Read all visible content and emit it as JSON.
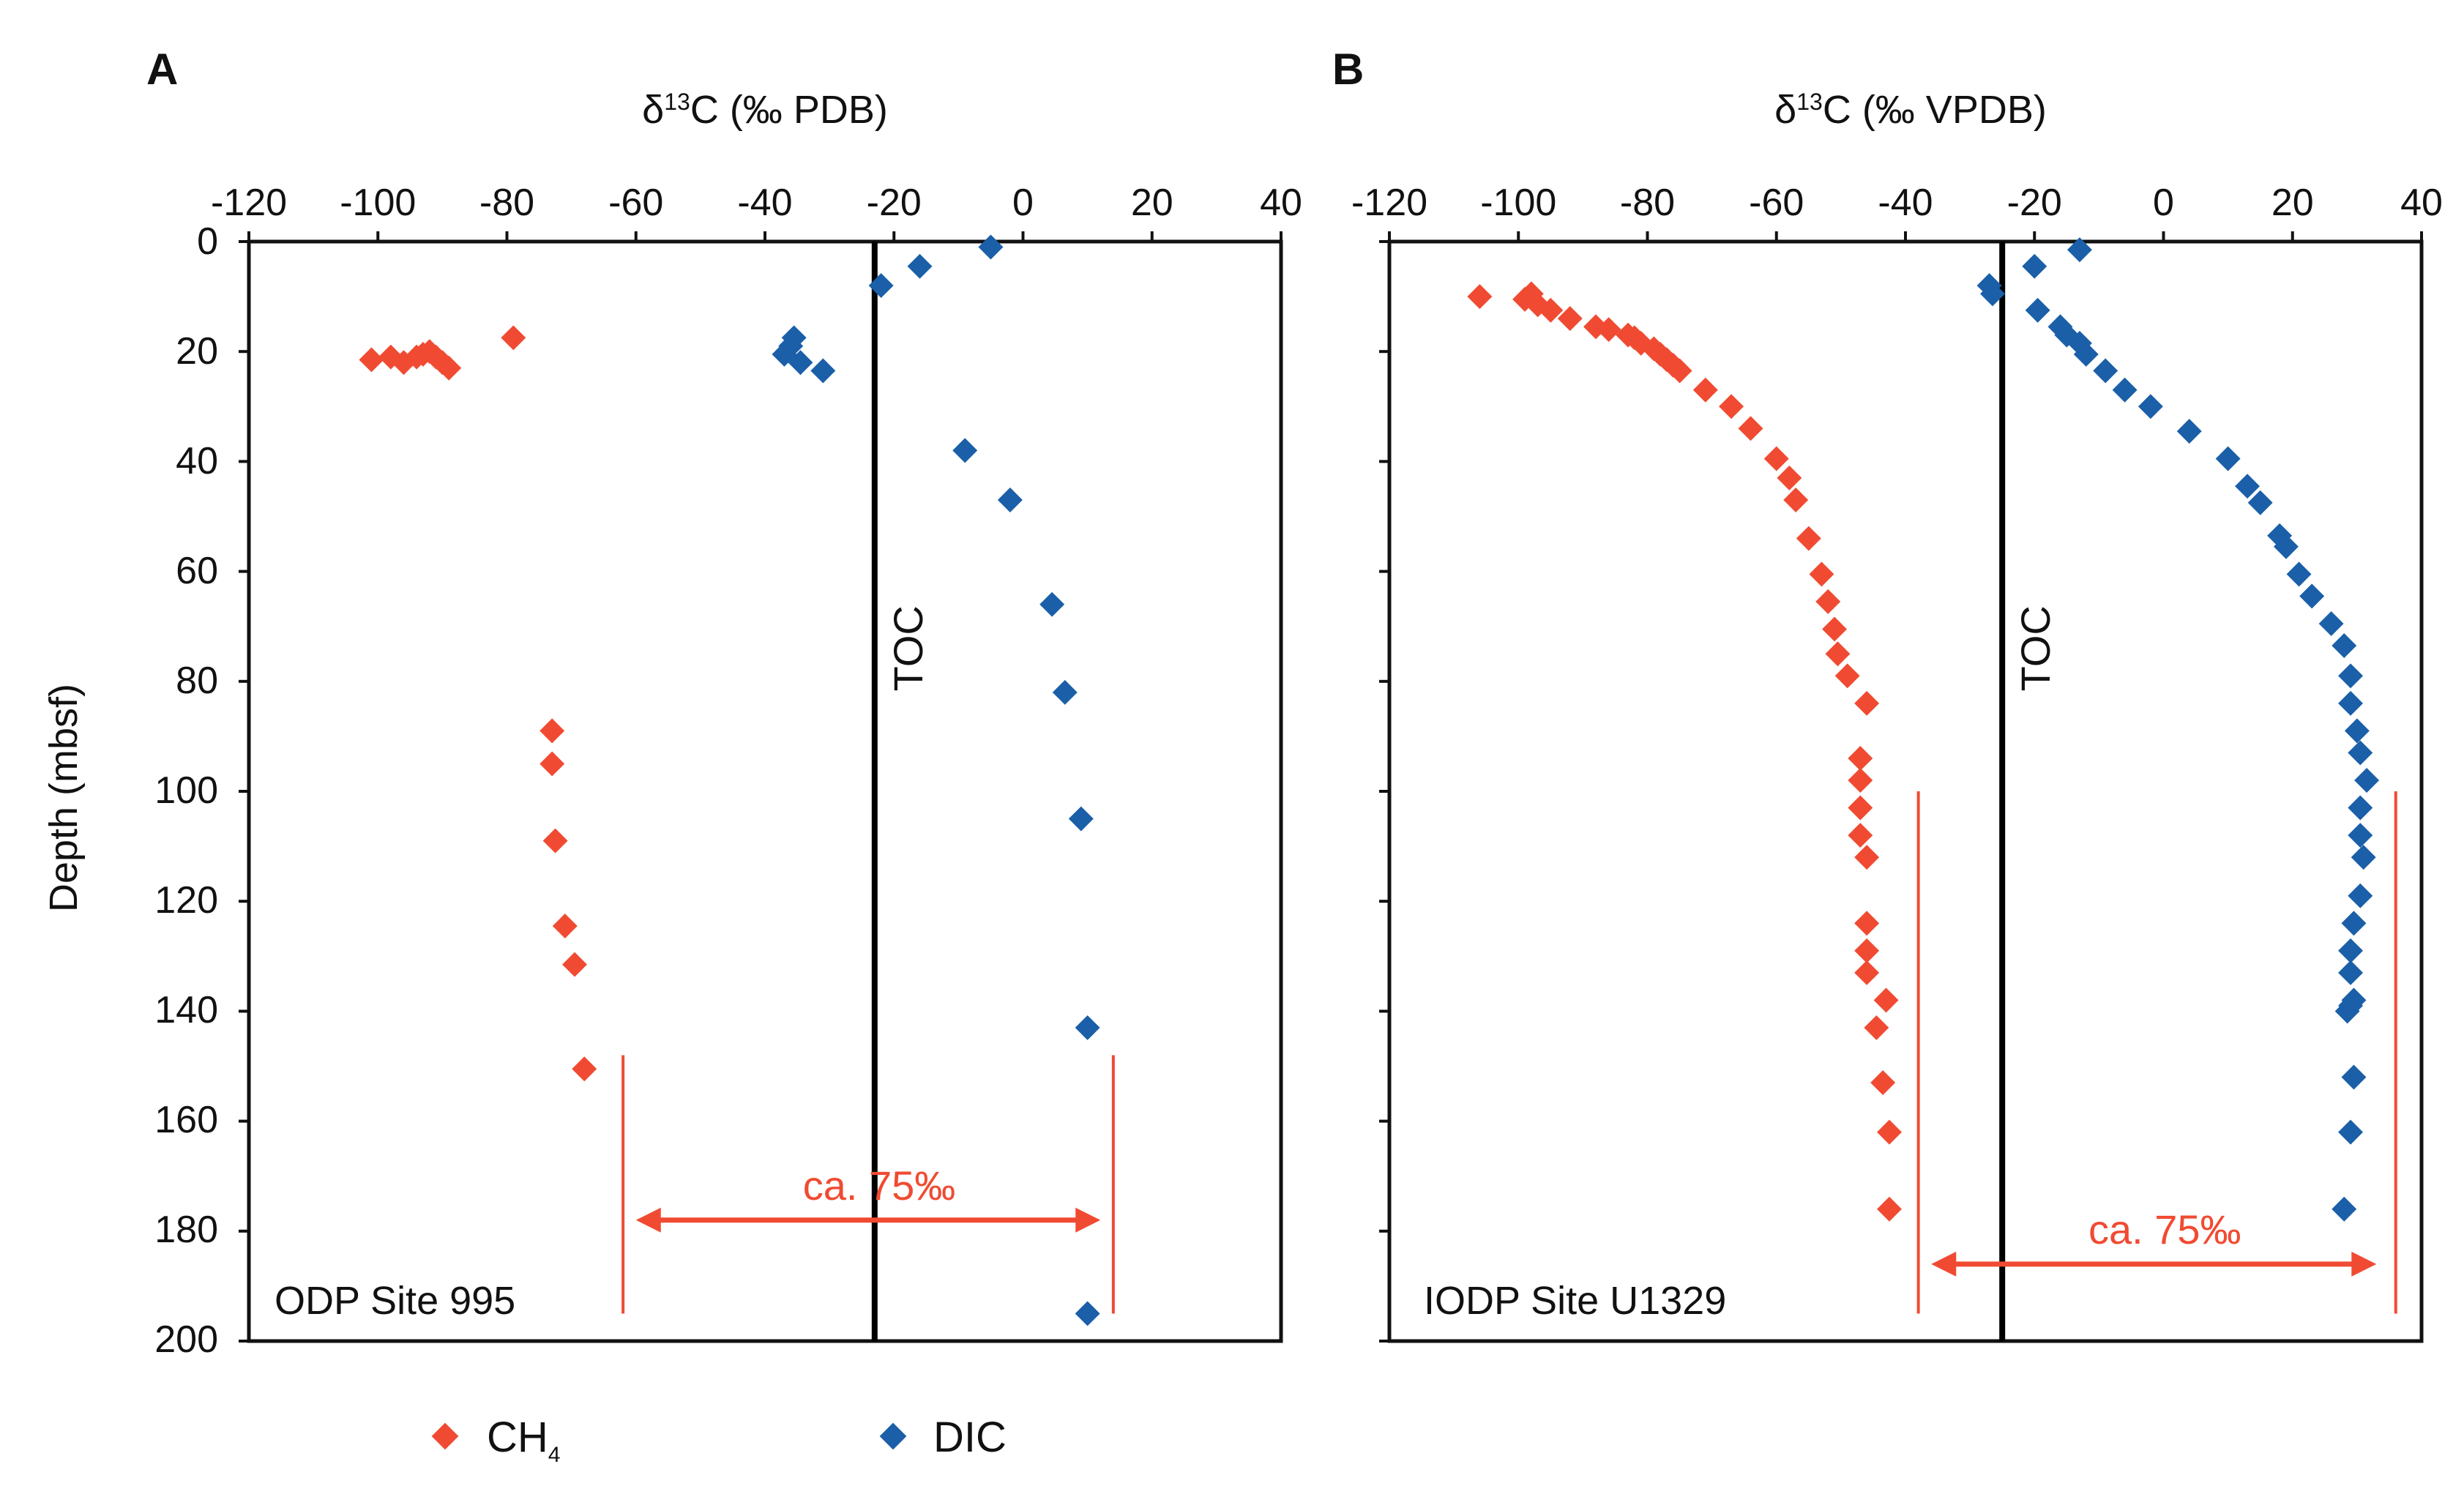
{
  "colors": {
    "ch4": "#f04b32",
    "dic": "#1a5fa8",
    "axis": "#111111",
    "toc": "#000000",
    "annotation": "#f04b32"
  },
  "y_axis": {
    "label": "Depth (mbsf)",
    "ticks": [
      "0",
      "20",
      "40",
      "60",
      "80",
      "100",
      "120",
      "140",
      "160",
      "180",
      "200"
    ]
  },
  "legend": {
    "ch4_label": "CH",
    "ch4_sub": "4",
    "dic_label": "DIC"
  },
  "chart_data": [
    {
      "type": "scatter",
      "panel": "A",
      "xlabel": "δ13C (‰ PDB)",
      "xlabel_main": "δ",
      "xlabel_sup": "13",
      "xlabel_rest": "C (‰ PDB)",
      "xlim": [
        -120,
        40
      ],
      "ylim": [
        0,
        200
      ],
      "x_ticks": [
        "-120",
        "-100",
        "-80",
        "-60",
        "-40",
        "-20",
        "0",
        "20",
        "40"
      ],
      "site_label": "ODP Site 995",
      "toc_label": "TOC",
      "toc_x": -23,
      "annotation": {
        "text": "ca. 75‰",
        "x_from": -60,
        "x_to": 12,
        "depth": 178,
        "bar_left_x": -62,
        "bar_right_x": 14,
        "bar_top_depth": 148,
        "bar_bottom_depth": 195
      },
      "series": [
        {
          "name": "CH4",
          "points": [
            [
              -101,
              21.5
            ],
            [
              -98,
              21
            ],
            [
              -96,
              22
            ],
            [
              -94,
              21
            ],
            [
              -93,
              20.5
            ],
            [
              -92,
              20
            ],
            [
              -91,
              21
            ],
            [
              -90,
              22
            ],
            [
              -89,
              23
            ],
            [
              -79,
              17.5
            ],
            [
              -73,
              89
            ],
            [
              -73,
              95
            ],
            [
              -72.5,
              109
            ],
            [
              -71,
              124.5
            ],
            [
              -69.5,
              131.5
            ],
            [
              -68,
              150.5
            ]
          ]
        },
        {
          "name": "DIC",
          "points": [
            [
              -5,
              1
            ],
            [
              -16,
              4.5
            ],
            [
              -22,
              8
            ],
            [
              -37,
              20.5
            ],
            [
              -36,
              19
            ],
            [
              -35.5,
              17.5
            ],
            [
              -34.5,
              22
            ],
            [
              -31,
              23.5
            ],
            [
              -9,
              38
            ],
            [
              -2,
              47
            ],
            [
              4.5,
              66
            ],
            [
              6.5,
              82
            ],
            [
              9,
              105
            ],
            [
              10,
              143
            ],
            [
              10,
              195
            ]
          ]
        }
      ]
    },
    {
      "type": "scatter",
      "panel": "B",
      "xlabel": "δ13C (‰ VPDB)",
      "xlabel_main": "δ",
      "xlabel_sup": "13",
      "xlabel_rest": "C (‰ VPDB)",
      "xlim": [
        -120,
        40
      ],
      "ylim": [
        0,
        200
      ],
      "x_ticks": [
        "-120",
        "-100",
        "-80",
        "-60",
        "-40",
        "-20",
        "0",
        "20",
        "40"
      ],
      "site_label": "IODP Site U1329",
      "toc_label": "TOC",
      "toc_x": -25,
      "annotation": {
        "text": "ca. 75‰",
        "x_from": -36,
        "x_to": 33,
        "depth": 186,
        "bar_left_x": -38,
        "bar_right_x": 36,
        "bar_top_depth": 100,
        "bar_bottom_depth": 195
      },
      "series": [
        {
          "name": "CH4",
          "points": [
            [
              -106,
              10
            ],
            [
              -98,
              9.5
            ],
            [
              -99,
              10.5
            ],
            [
              -97,
              11.5
            ],
            [
              -95,
              12.5
            ],
            [
              -92,
              14
            ],
            [
              -88,
              15.5
            ],
            [
              -86,
              16
            ],
            [
              -83,
              17
            ],
            [
              -82,
              17.5
            ],
            [
              -81,
              18.5
            ],
            [
              -79,
              19.5
            ],
            [
              -78,
              20.5
            ],
            [
              -77,
              21.5
            ],
            [
              -76,
              22.5
            ],
            [
              -75,
              23.5
            ],
            [
              -71,
              27
            ],
            [
              -67,
              30
            ],
            [
              -64,
              34
            ],
            [
              -60,
              39.5
            ],
            [
              -58,
              43
            ],
            [
              -57,
              47
            ],
            [
              -55,
              54
            ],
            [
              -53,
              60.5
            ],
            [
              -52,
              65.5
            ],
            [
              -51,
              70.5
            ],
            [
              -50.5,
              75
            ],
            [
              -49,
              79
            ],
            [
              -46,
              84
            ],
            [
              -47,
              94
            ],
            [
              -47,
              98
            ],
            [
              -47,
              103
            ],
            [
              -47,
              108
            ],
            [
              -46,
              112
            ],
            [
              -46,
              124
            ],
            [
              -46,
              129
            ],
            [
              -46,
              133
            ],
            [
              -43,
              138
            ],
            [
              -44.5,
              143
            ],
            [
              -43.5,
              153
            ],
            [
              -42.5,
              162
            ],
            [
              -42.5,
              176
            ]
          ]
        },
        {
          "name": "DIC",
          "points": [
            [
              -13,
              1.5
            ],
            [
              -27,
              8
            ],
            [
              -26.5,
              9.5
            ],
            [
              -20,
              4.5
            ],
            [
              -19.5,
              12.5
            ],
            [
              -16,
              15.5
            ],
            [
              -15,
              17
            ],
            [
              -13,
              18.5
            ],
            [
              -12,
              20.5
            ],
            [
              -9,
              23.5
            ],
            [
              -6,
              27
            ],
            [
              -2,
              30
            ],
            [
              4,
              34.5
            ],
            [
              10,
              39.5
            ],
            [
              13,
              44.5
            ],
            [
              15,
              47.5
            ],
            [
              18,
              53.5
            ],
            [
              19,
              55.5
            ],
            [
              21,
              60.5
            ],
            [
              23,
              64.5
            ],
            [
              26,
              69.5
            ],
            [
              28,
              73.5
            ],
            [
              29,
              79
            ],
            [
              29,
              84
            ],
            [
              30,
              89
            ],
            [
              30.5,
              93
            ],
            [
              31.5,
              98
            ],
            [
              30.5,
              103
            ],
            [
              30.5,
              108
            ],
            [
              31,
              112
            ],
            [
              30.5,
              119
            ],
            [
              29.5,
              124
            ],
            [
              29,
              129
            ],
            [
              29,
              133
            ],
            [
              29.5,
              138
            ],
            [
              29,
              139
            ],
            [
              28.5,
              140
            ],
            [
              29.5,
              152
            ],
            [
              29,
              162
            ],
            [
              28,
              176
            ]
          ]
        }
      ]
    }
  ]
}
